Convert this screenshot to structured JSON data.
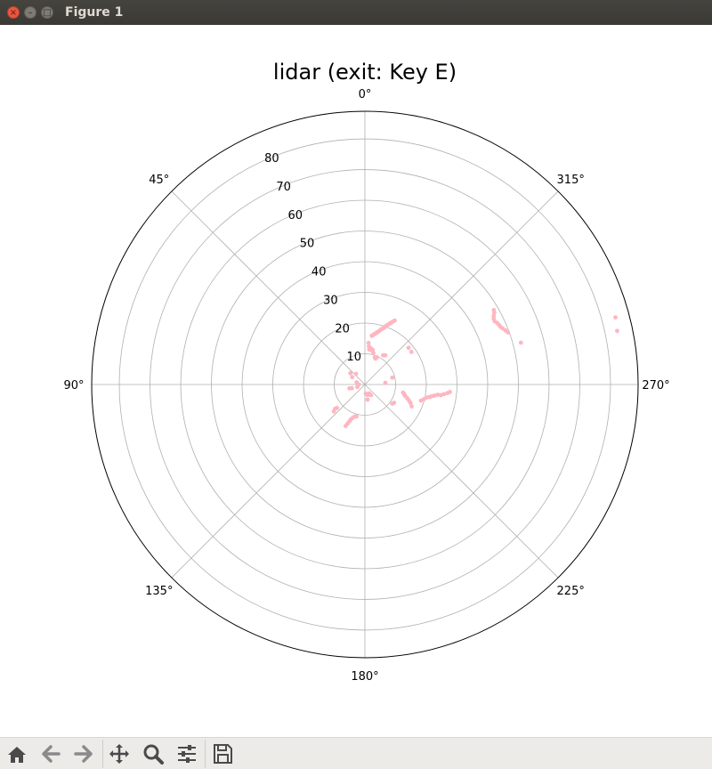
{
  "window": {
    "title": "Figure 1",
    "close_glyph": "×",
    "min_glyph": "–",
    "max_glyph": "□"
  },
  "toolbar": {
    "items": [
      {
        "icon": "home-icon"
      },
      {
        "icon": "arrow-left-icon"
      },
      {
        "icon": "arrow-right-icon"
      },
      {
        "icon": "pan-move-icon"
      },
      {
        "icon": "zoom-magnifier-icon"
      },
      {
        "icon": "subplot-sliders-icon"
      },
      {
        "icon": "save-floppy-icon"
      }
    ]
  },
  "chart_data": {
    "type": "scatter",
    "projection": "polar",
    "title": "lidar (exit: Key E)",
    "theta_zero_location": "N",
    "theta_direction": "counterclockwise",
    "angle_ticks": [
      "0°",
      "45°",
      "90°",
      "135°",
      "180°",
      "225°",
      "270°",
      "315°"
    ],
    "radial_ticks": [
      10,
      20,
      30,
      40,
      50,
      60,
      70,
      80
    ],
    "rlim": [
      0,
      89
    ],
    "grid": true,
    "marker_color": "#ffb6c1",
    "series": [
      {
        "points_deg_r": [
          [
            352,
            16.0
          ],
          [
            351,
            16.2
          ],
          [
            350,
            16.5
          ],
          [
            349,
            16.8
          ],
          [
            348,
            17.0
          ],
          [
            347,
            17.4
          ],
          [
            346,
            17.7
          ],
          [
            345,
            18.1
          ],
          [
            344,
            18.5
          ],
          [
            343,
            18.9
          ],
          [
            342,
            19.3
          ],
          [
            341,
            19.8
          ],
          [
            340,
            20.3
          ],
          [
            339,
            20.8
          ],
          [
            338,
            21.4
          ],
          [
            337,
            21.9
          ],
          [
            336,
            22.4
          ],
          [
            335,
            23.0
          ],
          [
            355,
            13.6
          ],
          [
            354,
            12.5
          ],
          [
            353,
            11.5
          ],
          [
            351,
            12.0
          ],
          [
            349,
            11.4
          ],
          [
            347,
            11.5
          ],
          [
            345,
            10.6
          ],
          [
            340,
            9.4
          ],
          [
            338,
            9.1
          ],
          [
            336,
            9.7
          ],
          [
            328,
            11.2
          ],
          [
            325,
            11.6
          ],
          [
            300,
            48.5
          ],
          [
            299,
            48.2
          ],
          [
            298,
            47.5
          ],
          [
            297,
            47.1
          ],
          [
            296,
            47.0
          ],
          [
            295,
            47.5
          ],
          [
            294,
            47.8
          ],
          [
            293,
            48.0
          ],
          [
            292,
            48.5
          ],
          [
            291,
            49.1
          ],
          [
            290,
            49.6
          ],
          [
            285,
            52.6
          ],
          [
            285,
            84.5
          ],
          [
            282,
            84.0
          ],
          [
            310,
            18.6
          ],
          [
            305,
            18.5
          ],
          [
            284,
            9.2
          ],
          [
            275,
            6.7
          ],
          [
            258,
            12.7
          ],
          [
            256,
            13.2
          ],
          [
            254,
            13.7
          ],
          [
            252,
            14.5
          ],
          [
            250,
            15.3
          ],
          [
            248,
            16.0
          ],
          [
            245,
            16.8
          ],
          [
            254,
            19.0
          ],
          [
            256,
            19.8
          ],
          [
            258,
            20.5
          ],
          [
            259,
            21.4
          ],
          [
            260,
            22.1
          ],
          [
            261,
            23.0
          ],
          [
            262,
            24.0
          ],
          [
            262,
            25.0
          ],
          [
            263,
            25.9
          ],
          [
            264,
            27.0
          ],
          [
            265,
            27.8
          ],
          [
            238,
            11.2
          ],
          [
            235,
            10.9
          ],
          [
            165,
            10.8
          ],
          [
            162,
            11.0
          ],
          [
            160,
            11.6
          ],
          [
            158,
            12.3
          ],
          [
            157,
            13.0
          ],
          [
            156,
            14.0
          ],
          [
            155,
            14.9
          ],
          [
            130,
            11.9
          ],
          [
            129,
            12.5
          ],
          [
            131,
            13.4
          ],
          [
            104,
            5.2
          ],
          [
            106,
            4.4
          ],
          [
            108,
            2.6
          ],
          [
            90,
            2.0
          ],
          [
            75,
            2.8
          ],
          [
            60,
            4.8
          ],
          [
            52,
            6.0
          ],
          [
            40,
            4.5
          ],
          [
            210,
            4.0
          ],
          [
            205,
            3.2
          ],
          [
            195,
            3.5
          ],
          [
            185,
            3.0
          ],
          [
            190,
            5.0
          ]
        ]
      }
    ]
  }
}
